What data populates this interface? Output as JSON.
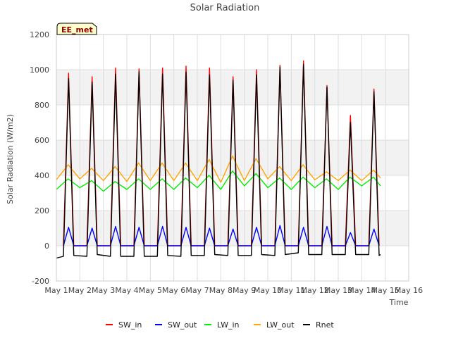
{
  "chart_data": {
    "type": "line",
    "title": "Solar Radiation",
    "xlabel": "Time",
    "ylabel": "Solar Radiation (W/m2)",
    "badge": "EE_met",
    "ylim": [
      -200,
      1200
    ],
    "yticks": [
      -200,
      0,
      200,
      400,
      600,
      800,
      1000,
      1200
    ],
    "xlim": [
      1,
      16
    ],
    "xticks": [
      {
        "value": 1,
        "label": "May 1"
      },
      {
        "value": 2,
        "label": "May 2"
      },
      {
        "value": 3,
        "label": "May 3"
      },
      {
        "value": 4,
        "label": "May 4"
      },
      {
        "value": 5,
        "label": "May 5"
      },
      {
        "value": 6,
        "label": "May 6"
      },
      {
        "value": 7,
        "label": "May 7"
      },
      {
        "value": 8,
        "label": "May 8"
      },
      {
        "value": 9,
        "label": "May 9"
      },
      {
        "value": 10,
        "label": "May 10"
      },
      {
        "value": 11,
        "label": "May 11"
      },
      {
        "value": 12,
        "label": "May 12"
      },
      {
        "value": 13,
        "label": "May 13"
      },
      {
        "value": 14,
        "label": "May 14"
      },
      {
        "value": 15,
        "label": "May 15"
      },
      {
        "value": 16,
        "label": "May 16"
      }
    ],
    "grid": true,
    "legend_position": "bottom",
    "series": [
      {
        "name": "SW_in",
        "color": "#ff0000",
        "values": [
          [
            1.3,
            0
          ],
          [
            1.52,
            980
          ],
          [
            1.74,
            0
          ],
          [
            2.3,
            0
          ],
          [
            2.52,
            960
          ],
          [
            2.74,
            0
          ],
          [
            3.3,
            0
          ],
          [
            3.52,
            1010
          ],
          [
            3.74,
            0
          ],
          [
            4.3,
            0
          ],
          [
            4.52,
            1005
          ],
          [
            4.74,
            0
          ],
          [
            5.3,
            0
          ],
          [
            5.52,
            1010
          ],
          [
            5.74,
            0
          ],
          [
            6.3,
            0
          ],
          [
            6.52,
            1020
          ],
          [
            6.74,
            0
          ],
          [
            7.3,
            0
          ],
          [
            7.52,
            1010
          ],
          [
            7.74,
            0
          ],
          [
            8.3,
            0
          ],
          [
            8.52,
            960
          ],
          [
            8.74,
            0
          ],
          [
            9.3,
            0
          ],
          [
            9.52,
            1000
          ],
          [
            9.74,
            0
          ],
          [
            10.3,
            0
          ],
          [
            10.52,
            1025
          ],
          [
            10.74,
            0
          ],
          [
            11.3,
            0
          ],
          [
            11.52,
            1050
          ],
          [
            11.74,
            0
          ],
          [
            12.3,
            0
          ],
          [
            12.52,
            910
          ],
          [
            12.74,
            0
          ],
          [
            13.3,
            0
          ],
          [
            13.52,
            740
          ],
          [
            13.74,
            0
          ],
          [
            14.3,
            0
          ],
          [
            14.52,
            890
          ],
          [
            14.74,
            0
          ]
        ]
      },
      {
        "name": "SW_out",
        "color": "#0000ff",
        "values": [
          [
            1.3,
            0
          ],
          [
            1.52,
            105
          ],
          [
            1.74,
            0
          ],
          [
            2.3,
            0
          ],
          [
            2.52,
            100
          ],
          [
            2.74,
            0
          ],
          [
            3.3,
            0
          ],
          [
            3.52,
            110
          ],
          [
            3.74,
            0
          ],
          [
            4.3,
            0
          ],
          [
            4.52,
            105
          ],
          [
            4.74,
            0
          ],
          [
            5.3,
            0
          ],
          [
            5.52,
            110
          ],
          [
            5.74,
            0
          ],
          [
            6.3,
            0
          ],
          [
            6.52,
            105
          ],
          [
            6.74,
            0
          ],
          [
            7.3,
            0
          ],
          [
            7.52,
            100
          ],
          [
            7.74,
            0
          ],
          [
            8.3,
            0
          ],
          [
            8.52,
            95
          ],
          [
            8.74,
            0
          ],
          [
            9.3,
            0
          ],
          [
            9.52,
            105
          ],
          [
            9.74,
            0
          ],
          [
            10.3,
            0
          ],
          [
            10.52,
            115
          ],
          [
            10.74,
            0
          ],
          [
            11.3,
            0
          ],
          [
            11.52,
            105
          ],
          [
            11.74,
            0
          ],
          [
            12.3,
            0
          ],
          [
            12.52,
            110
          ],
          [
            12.74,
            0
          ],
          [
            13.3,
            0
          ],
          [
            13.52,
            75
          ],
          [
            13.74,
            0
          ],
          [
            14.3,
            0
          ],
          [
            14.52,
            95
          ],
          [
            14.74,
            0
          ]
        ]
      },
      {
        "name": "LW_in",
        "color": "#00ee00",
        "values": [
          [
            1.0,
            320
          ],
          [
            1.5,
            380
          ],
          [
            2.0,
            330
          ],
          [
            2.5,
            370
          ],
          [
            3.0,
            310
          ],
          [
            3.5,
            365
          ],
          [
            4.0,
            320
          ],
          [
            4.5,
            380
          ],
          [
            5.0,
            320
          ],
          [
            5.5,
            380
          ],
          [
            6.0,
            320
          ],
          [
            6.5,
            385
          ],
          [
            7.0,
            330
          ],
          [
            7.5,
            400
          ],
          [
            8.0,
            320
          ],
          [
            8.5,
            425
          ],
          [
            9.0,
            340
          ],
          [
            9.5,
            410
          ],
          [
            10.0,
            330
          ],
          [
            10.5,
            385
          ],
          [
            11.0,
            320
          ],
          [
            11.5,
            390
          ],
          [
            12.0,
            330
          ],
          [
            12.5,
            380
          ],
          [
            13.0,
            320
          ],
          [
            13.5,
            390
          ],
          [
            14.0,
            340
          ],
          [
            14.5,
            390
          ],
          [
            14.8,
            340
          ]
        ]
      },
      {
        "name": "LW_out",
        "color": "#ffa500",
        "values": [
          [
            1.0,
            375
          ],
          [
            1.5,
            460
          ],
          [
            2.0,
            380
          ],
          [
            2.5,
            440
          ],
          [
            3.0,
            370
          ],
          [
            3.5,
            450
          ],
          [
            4.0,
            365
          ],
          [
            4.5,
            470
          ],
          [
            5.0,
            370
          ],
          [
            5.5,
            470
          ],
          [
            6.0,
            370
          ],
          [
            6.5,
            470
          ],
          [
            7.0,
            370
          ],
          [
            7.5,
            490
          ],
          [
            8.0,
            360
          ],
          [
            8.5,
            510
          ],
          [
            9.0,
            370
          ],
          [
            9.5,
            495
          ],
          [
            10.0,
            380
          ],
          [
            10.5,
            450
          ],
          [
            11.0,
            370
          ],
          [
            11.5,
            460
          ],
          [
            12.0,
            375
          ],
          [
            12.5,
            420
          ],
          [
            13.0,
            370
          ],
          [
            13.5,
            430
          ],
          [
            14.0,
            370
          ],
          [
            14.5,
            430
          ],
          [
            14.8,
            385
          ]
        ]
      },
      {
        "name": "Rnet",
        "color": "#000000",
        "values": [
          [
            1.0,
            -70
          ],
          [
            1.3,
            -60
          ],
          [
            1.52,
            950
          ],
          [
            1.74,
            -55
          ],
          [
            2.3,
            -60
          ],
          [
            2.52,
            930
          ],
          [
            2.74,
            -50
          ],
          [
            3.3,
            -60
          ],
          [
            3.52,
            975
          ],
          [
            3.74,
            -60
          ],
          [
            4.3,
            -60
          ],
          [
            4.52,
            990
          ],
          [
            4.74,
            -60
          ],
          [
            5.3,
            -60
          ],
          [
            5.52,
            975
          ],
          [
            5.74,
            -55
          ],
          [
            6.3,
            -60
          ],
          [
            6.52,
            985
          ],
          [
            6.74,
            -55
          ],
          [
            7.3,
            -55
          ],
          [
            7.52,
            970
          ],
          [
            7.74,
            -50
          ],
          [
            8.3,
            -55
          ],
          [
            8.52,
            940
          ],
          [
            8.74,
            -55
          ],
          [
            9.3,
            -55
          ],
          [
            9.52,
            970
          ],
          [
            9.74,
            -50
          ],
          [
            10.3,
            -55
          ],
          [
            10.52,
            1015
          ],
          [
            10.74,
            -50
          ],
          [
            11.3,
            -40
          ],
          [
            11.52,
            1030
          ],
          [
            11.74,
            -50
          ],
          [
            12.3,
            -50
          ],
          [
            12.52,
            900
          ],
          [
            12.74,
            -50
          ],
          [
            13.3,
            -50
          ],
          [
            13.52,
            700
          ],
          [
            13.74,
            -50
          ],
          [
            14.3,
            -50
          ],
          [
            14.52,
            875
          ],
          [
            14.74,
            -55
          ],
          [
            14.8,
            -50
          ]
        ]
      }
    ]
  }
}
